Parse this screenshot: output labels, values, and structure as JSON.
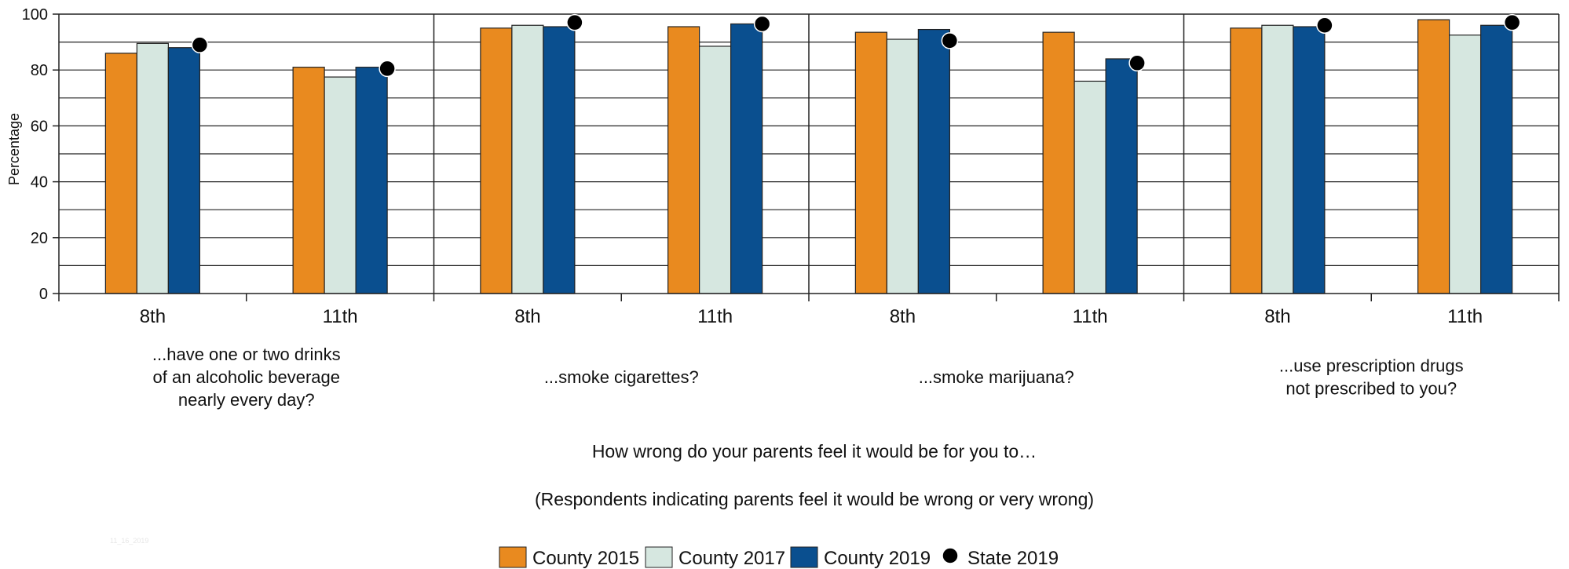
{
  "chart_data": {
    "type": "bar",
    "ylabel": "Percentage",
    "ylim": [
      0,
      100
    ],
    "yticks": [
      0,
      20,
      40,
      60,
      80,
      100
    ],
    "grid": true,
    "legend_position": "bottom",
    "groups": [
      {
        "label_lines": [
          "...have one or two drinks",
          "of an alcoholic beverage",
          "nearly every day?"
        ],
        "grades": [
          "8th",
          "11th"
        ]
      },
      {
        "label_lines": [
          "...smoke cigarettes?"
        ],
        "grades": [
          "8th",
          "11th"
        ]
      },
      {
        "label_lines": [
          "...smoke marijuana?"
        ],
        "grades": [
          "8th",
          "11th"
        ]
      },
      {
        "label_lines": [
          "...use prescription drugs",
          "not prescribed to you?"
        ],
        "grades": [
          "8th",
          "11th"
        ]
      }
    ],
    "categories": [
      "Alcohol 8th",
      "Alcohol 11th",
      "Cigarettes 8th",
      "Cigarettes 11th",
      "Marijuana 8th",
      "Marijuana 11th",
      "Rx drugs 8th",
      "Rx drugs 11th"
    ],
    "series": [
      {
        "name": "County 2015",
        "kind": "bar",
        "color": "#e98a1f",
        "values": [
          86,
          81,
          95,
          95.5,
          93.5,
          93.5,
          95,
          98
        ]
      },
      {
        "name": "County 2017",
        "kind": "bar",
        "color": "#d6e7e0",
        "values": [
          89.5,
          77.5,
          96,
          88.5,
          91,
          76,
          96,
          92.5
        ]
      },
      {
        "name": "County 2019",
        "kind": "bar",
        "color": "#0a4f8f",
        "values": [
          88,
          81,
          95.5,
          96.5,
          94.5,
          84,
          95.5,
          96
        ]
      },
      {
        "name": "State 2019",
        "kind": "marker",
        "color": "#000000",
        "values": [
          89,
          80.5,
          97,
          96.5,
          90.5,
          82.5,
          96,
          97
        ]
      }
    ],
    "notes": [
      "How wrong do your parents feel it would be for you to…",
      "(Respondents indicating parents feel it would be wrong or very wrong)"
    ]
  },
  "legend": {
    "items": [
      {
        "label": "County 2015",
        "icon": "square-swatch",
        "color": "#e98a1f"
      },
      {
        "label": "County 2017",
        "icon": "square-swatch",
        "color": "#d6e7e0"
      },
      {
        "label": "County 2019",
        "icon": "square-swatch",
        "color": "#0a4f8f"
      },
      {
        "label": "State 2019",
        "icon": "circle-marker",
        "color": "#000000"
      }
    ]
  },
  "faint_text": "11_16_2019"
}
